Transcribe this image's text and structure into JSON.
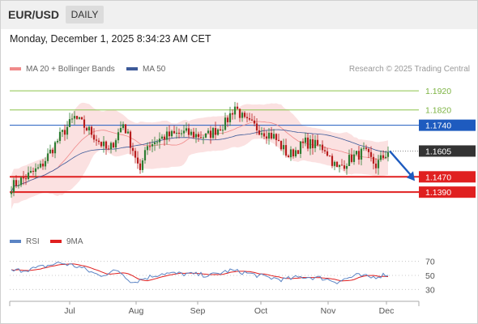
{
  "header": {
    "symbol": "EUR/USD",
    "timeframe": "DAILY",
    "datetime": "Monday, December 1, 2025 8:34:23 AM CET"
  },
  "legend": {
    "ma20": "MA 20 + Bollinger Bands",
    "ma50": "MA 50",
    "credit": "Research © 2025 Trading Central"
  },
  "rsi_legend": {
    "rsi": "RSI",
    "ma9": "9MA"
  },
  "colors": {
    "up": "#2e7d32",
    "down": "#b71c1c",
    "band": "#fbe1e1",
    "ma20": "#f08a8a",
    "ma50": "#3d5a99",
    "resistance": "#8bc34a",
    "pivot": "#1e5bbf",
    "support": "#e02020",
    "current": "#333333",
    "rsi": "#5b84c4",
    "rsi_ma": "#e02020"
  },
  "chart_data": [
    {
      "type": "candlestick",
      "x_ticks": [
        "Jul",
        "Aug",
        "Sep",
        "Oct",
        "Nov",
        "Dec"
      ],
      "y_range": [
        1.12,
        1.198
      ],
      "levels": [
        {
          "label": "1.1920",
          "value": 1.192,
          "kind": "resistance"
        },
        {
          "label": "1.1820",
          "value": 1.182,
          "kind": "resistance"
        },
        {
          "label": "1.1740",
          "value": 1.174,
          "kind": "pivot"
        },
        {
          "label": "1.1605",
          "value": 1.1605,
          "kind": "current"
        },
        {
          "label": "1.1470",
          "value": 1.147,
          "kind": "support"
        },
        {
          "label": "1.1390",
          "value": 1.139,
          "kind": "support"
        }
      ],
      "anchors": [
        {
          "i": 0,
          "v": 1.142
        },
        {
          "i": 5,
          "v": 1.146
        },
        {
          "i": 12,
          "v": 1.152
        },
        {
          "i": 20,
          "v": 1.168
        },
        {
          "i": 26,
          "v": 1.178
        },
        {
          "i": 33,
          "v": 1.17
        },
        {
          "i": 40,
          "v": 1.16
        },
        {
          "i": 46,
          "v": 1.175
        },
        {
          "i": 51,
          "v": 1.158
        },
        {
          "i": 53,
          "v": 1.148
        },
        {
          "i": 55,
          "v": 1.163
        },
        {
          "i": 63,
          "v": 1.168
        },
        {
          "i": 71,
          "v": 1.17
        },
        {
          "i": 80,
          "v": 1.168
        },
        {
          "i": 88,
          "v": 1.175
        },
        {
          "i": 92,
          "v": 1.184
        },
        {
          "i": 96,
          "v": 1.176
        },
        {
          "i": 102,
          "v": 1.172
        },
        {
          "i": 108,
          "v": 1.168
        },
        {
          "i": 114,
          "v": 1.158
        },
        {
          "i": 121,
          "v": 1.165
        },
        {
          "i": 129,
          "v": 1.162
        },
        {
          "i": 134,
          "v": 1.151
        },
        {
          "i": 140,
          "v": 1.157
        },
        {
          "i": 145,
          "v": 1.16
        },
        {
          "i": 150,
          "v": 1.153
        },
        {
          "i": 155,
          "v": 1.1605
        }
      ],
      "forecast": {
        "from": 1.1605,
        "to": 1.144
      }
    },
    {
      "type": "line",
      "name": "RSI",
      "y_ticks": [
        70,
        50,
        30
      ],
      "y_range": [
        20,
        80
      ],
      "rsi_anchors": [
        {
          "i": 0,
          "v": 56
        },
        {
          "i": 10,
          "v": 60
        },
        {
          "i": 20,
          "v": 68
        },
        {
          "i": 28,
          "v": 62
        },
        {
          "i": 36,
          "v": 50
        },
        {
          "i": 44,
          "v": 57
        },
        {
          "i": 50,
          "v": 40
        },
        {
          "i": 54,
          "v": 45
        },
        {
          "i": 62,
          "v": 53
        },
        {
          "i": 72,
          "v": 52
        },
        {
          "i": 82,
          "v": 50
        },
        {
          "i": 90,
          "v": 57
        },
        {
          "i": 96,
          "v": 54
        },
        {
          "i": 104,
          "v": 48
        },
        {
          "i": 112,
          "v": 44
        },
        {
          "i": 120,
          "v": 48
        },
        {
          "i": 128,
          "v": 46
        },
        {
          "i": 134,
          "v": 41
        },
        {
          "i": 142,
          "v": 50
        },
        {
          "i": 148,
          "v": 47
        },
        {
          "i": 155,
          "v": 52
        }
      ]
    }
  ]
}
